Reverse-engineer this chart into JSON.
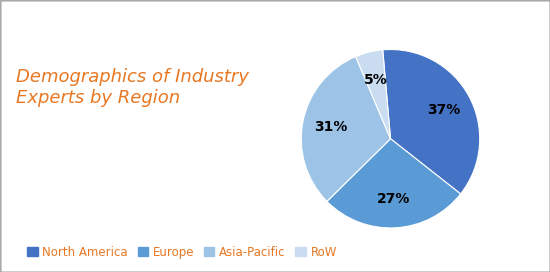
{
  "title": "Demographics of Industry\nExperts by Region",
  "title_color": "#E87722",
  "title_fontsize": 13,
  "labels": [
    "North America",
    "Europe",
    "Asia-Pacific",
    "RoW"
  ],
  "values": [
    37,
    27,
    31,
    5
  ],
  "colors": [
    "#4472C4",
    "#5B9BD5",
    "#9DC3E6",
    "#C9DCF0"
  ],
  "legend_text_color": "#E87722",
  "background_color": "#FFFFFF",
  "startangle": 95,
  "legend_fontsize": 8.5,
  "pctdistance": 0.68
}
